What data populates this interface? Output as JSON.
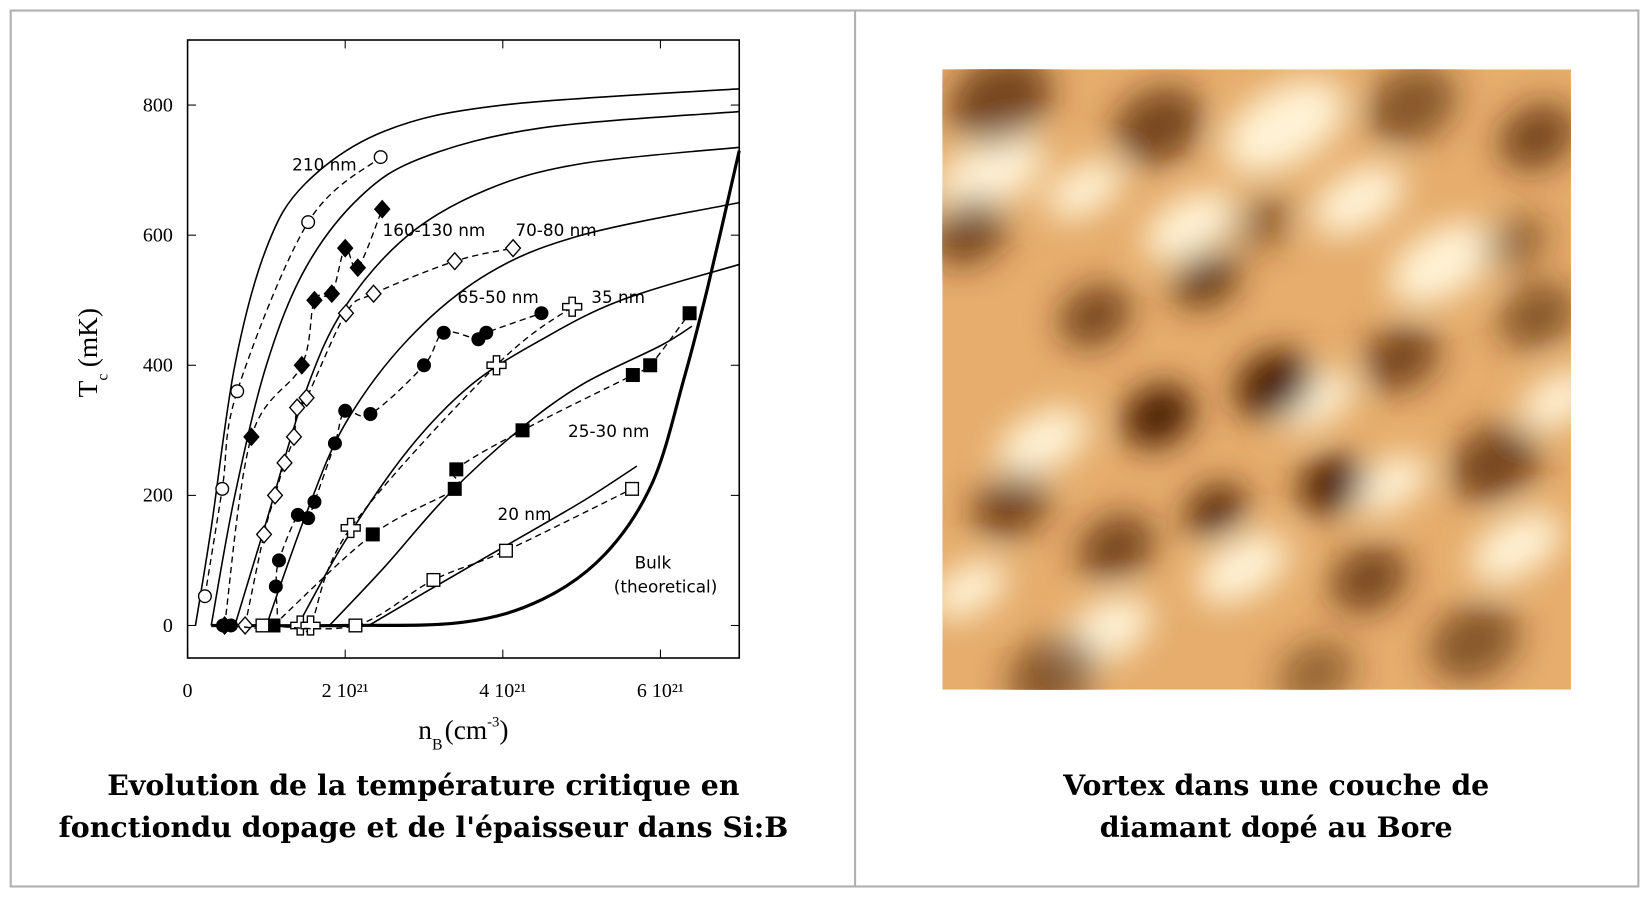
{
  "chart_data": {
    "type": "scatter",
    "xlabel": [
      "n",
      "B",
      "(cm",
      "-3",
      ")"
    ],
    "ylabel": [
      "T",
      "c",
      "(mK)"
    ],
    "xlim": [
      0,
      7
    ],
    "ylim": [
      -50,
      900
    ],
    "xticks": [
      0,
      {
        "value": 2,
        "label": "2 10²¹"
      },
      {
        "value": 4,
        "label": "4 10²¹"
      },
      {
        "value": 6,
        "label": "6 10²¹"
      }
    ],
    "yticks": [
      0,
      200,
      400,
      600,
      800
    ],
    "color": "#000000",
    "series": [
      {
        "name": "210 nm",
        "marker": "circle",
        "filled": false,
        "x": [
          0.22,
          0.44,
          0.63,
          1.53,
          2.45
        ],
        "values": [
          45,
          210,
          360,
          620,
          720
        ]
      },
      {
        "name": "160-130 nm",
        "marker": "diamond",
        "filled": true,
        "x": [
          0.47,
          0.81,
          1.45,
          1.61,
          1.83,
          2.0,
          2.16,
          2.47
        ],
        "values": [
          0,
          290,
          400,
          500,
          510,
          580,
          550,
          640
        ]
      },
      {
        "name": "70-80 nm",
        "marker": "diamond",
        "filled": false,
        "x": [
          0.73,
          0.97,
          1.11,
          1.23,
          1.35,
          1.39,
          1.51,
          2.01,
          2.36,
          3.39,
          4.13
        ],
        "values": [
          0,
          140,
          200,
          250,
          290,
          335,
          350,
          480,
          510,
          560,
          580
        ]
      },
      {
        "name": "65-50 nm",
        "marker": "circle",
        "filled": true,
        "x": [
          0.45,
          0.55,
          1.09,
          1.12,
          1.16,
          1.4,
          1.53,
          1.61,
          1.87,
          2.0,
          2.32,
          3.0,
          3.25,
          3.69,
          3.79,
          4.49
        ],
        "values": [
          0,
          0,
          0,
          60,
          100,
          170,
          165,
          190,
          280,
          330,
          325,
          400,
          450,
          440,
          450,
          480
        ]
      },
      {
        "name": "35 nm",
        "marker": "cross",
        "filled": false,
        "x": [
          1.43,
          1.56,
          2.07,
          3.92,
          4.88
        ],
        "values": [
          0,
          0,
          150,
          400,
          490
        ]
      },
      {
        "name": "25-30 nm",
        "marker": "square",
        "filled": true,
        "x": [
          1.09,
          2.35,
          3.39,
          3.41,
          4.25,
          5.65,
          5.87,
          6.37
        ],
        "values": [
          0,
          140,
          210,
          240,
          300,
          385,
          400,
          480
        ]
      },
      {
        "name": "20 nm",
        "marker": "square",
        "filled": false,
        "x": [
          0.95,
          2.13,
          3.12,
          4.04,
          5.64
        ],
        "values": [
          0,
          0,
          70,
          115,
          210
        ]
      }
    ],
    "curves": [
      {
        "x": [
          0.1,
          0.3,
          0.6,
          1,
          1.5,
          2.5,
          4,
          7
        ],
        "values": [
          0,
          150,
          400,
          580,
          680,
          760,
          800,
          825
        ]
      },
      {
        "x": [
          0.3,
          0.6,
          1,
          1.5,
          2.2,
          3,
          4.5,
          7
        ],
        "values": [
          0,
          200,
          400,
          550,
          660,
          720,
          765,
          790
        ]
      },
      {
        "x": [
          0.6,
          1,
          1.5,
          2,
          2.8,
          3.8,
          5,
          7
        ],
        "values": [
          0,
          160,
          360,
          490,
          600,
          670,
          710,
          735
        ]
      },
      {
        "x": [
          1,
          1.5,
          2,
          2.8,
          3.8,
          5,
          7
        ],
        "values": [
          0,
          170,
          310,
          440,
          540,
          600,
          650
        ]
      },
      {
        "x": [
          1.4,
          2,
          2.8,
          3.6,
          4.5,
          5.5,
          7
        ],
        "values": [
          0,
          130,
          270,
          370,
          440,
          500,
          555
        ]
      },
      {
        "x": [
          1.8,
          2.5,
          3.3,
          4.2,
          5,
          6,
          6.4
        ],
        "values": [
          0,
          90,
          200,
          300,
          370,
          430,
          460
        ]
      },
      {
        "x": [
          2.3,
          3,
          4,
          5,
          5.7
        ],
        "values": [
          0,
          50,
          120,
          190,
          245
        ]
      },
      {
        "x": [
          0.3,
          2,
          3.5,
          4.5,
          5.3,
          5.9,
          6.3,
          6.6,
          7
        ],
        "values": [
          0,
          0,
          5,
          40,
          110,
          220,
          380,
          520,
          730
        ],
        "bold": true
      }
    ],
    "annotations": [
      "Bulk",
      "(theoretical)"
    ]
  },
  "captions": {
    "left": [
      "Evolution de la température critique en",
      "fonctiondu dopage et de l'épaisseur dans Si:B"
    ],
    "right": [
      "Vortex dans une couche de",
      "diamant dopé au Bore"
    ]
  }
}
